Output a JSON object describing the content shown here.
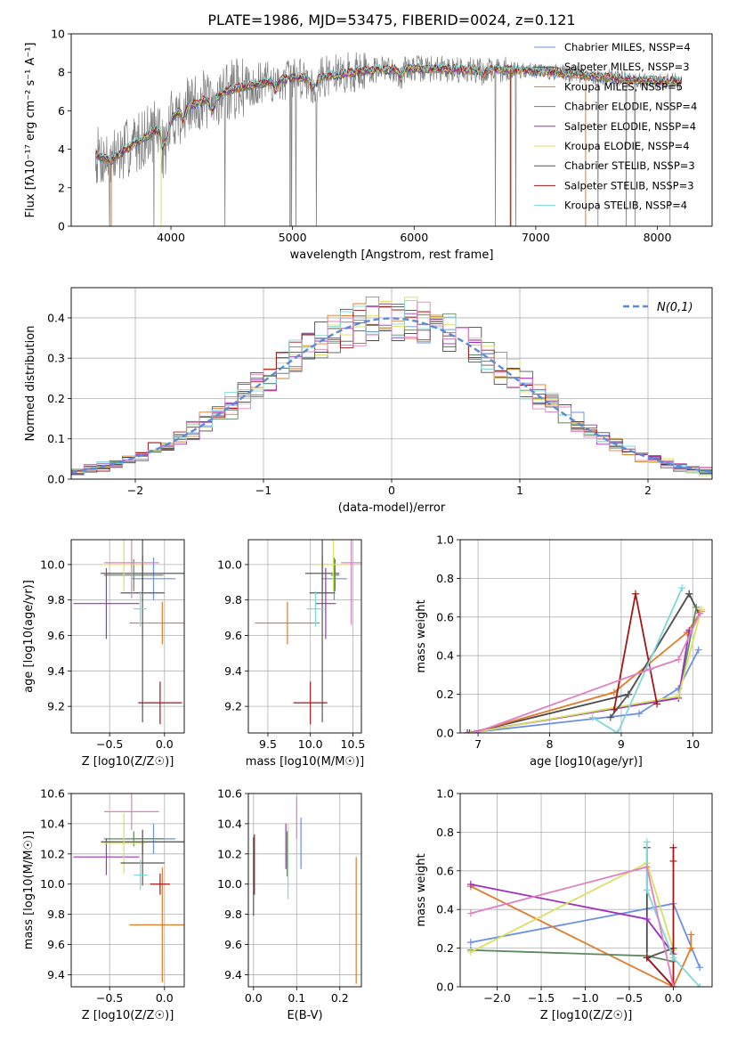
{
  "title": "PLATE=1986, MJD=53475, FIBERID=0024, z=0.121",
  "colors": {
    "Chabrier MILES": "#6b8fe3",
    "Salpeter MILES": "#4a4a4a",
    "Kroupa MILES": "#e07b2a",
    "Chabrier ELODIE": "#5f8a5f",
    "Salpeter ELODIE": "#9b30c0",
    "Kroupa ELODIE": "#d8e060",
    "Chabrier STELIB": "#555555",
    "Salpeter STELIB": "#a01818",
    "Kroupa STELIB": "#7fd8d8",
    "pink": "#e080c0",
    "data": "#7f7f7f"
  },
  "chart_data": [
    {
      "id": "spectrum",
      "type": "line",
      "xlabel": "wavelength [Angstrom, rest frame]",
      "ylabel": "Flux [fλ10⁻¹⁷ erg cm⁻² s⁻¹ A⁻¹]",
      "xlim": [
        3180,
        8450
      ],
      "ylim": [
        0,
        10
      ],
      "xticks": [
        4000,
        5000,
        6000,
        7000,
        8000
      ],
      "yticks": [
        0,
        2,
        4,
        6,
        8,
        10
      ],
      "legend_position": "top-right",
      "legend": [
        "Chabrier MILES, NSSP=4",
        "Salpeter MILES, NSSP=3",
        "Kroupa MILES, NSSP=5",
        "Chabrier ELODIE, NSSP=4",
        "Salpeter ELODIE, NSSP=4",
        "Kroupa ELODIE, NSSP=4",
        "Chabrier STELIB, NSSP=3",
        "Salpeter STELIB, NSSP=3",
        "Kroupa STELIB, NSSP=4"
      ],
      "legend_keys": [
        "Chabrier MILES",
        "Salpeter MILES",
        "Kroupa MILES",
        "Chabrier ELODIE",
        "Salpeter ELODIE",
        "Kroupa ELODIE",
        "Chabrier STELIB",
        "Salpeter STELIB",
        "Kroupa STELIB"
      ],
      "continuum": [
        [
          3380,
          3.7
        ],
        [
          3500,
          3.4
        ],
        [
          3700,
          4.3
        ],
        [
          3900,
          5.1
        ],
        [
          4100,
          6.1
        ],
        [
          4300,
          6.6
        ],
        [
          4500,
          7.1
        ],
        [
          4800,
          7.5
        ],
        [
          5000,
          7.7
        ],
        [
          5300,
          7.8
        ],
        [
          5600,
          8.1
        ],
        [
          6000,
          8.2
        ],
        [
          6400,
          8.15
        ],
        [
          7000,
          8.1
        ],
        [
          7400,
          7.85
        ],
        [
          7800,
          7.6
        ],
        [
          8200,
          7.5
        ]
      ]
    },
    {
      "id": "residuals",
      "type": "histogram",
      "xlabel": "(data-model)/error",
      "ylabel": "Normed distribution",
      "xlim": [
        -2.5,
        2.5
      ],
      "ylim": [
        0,
        0.475
      ],
      "xticks": [
        -2,
        -1,
        0,
        1,
        2
      ],
      "yticks": [
        0.0,
        0.1,
        0.2,
        0.3,
        0.4
      ],
      "legend_position": "top-right",
      "legend": [
        "N(0,1)"
      ],
      "bin_width": 0.1
    },
    {
      "id": "age-vs-Z",
      "type": "errorbar",
      "xlabel": "Z [log10(Z/Z☉)]",
      "ylabel": "age  [log10(age/yr)]",
      "xlim": [
        -0.85,
        0.18
      ],
      "ylim": [
        9.05,
        10.14
      ],
      "xticks": [
        -0.5,
        0.0
      ],
      "yticks": [
        9.2,
        9.4,
        9.6,
        9.8,
        10.0
      ],
      "points": [
        {
          "key": "Chabrier MILES",
          "x": -0.1,
          "xerr": 0.2,
          "y": 9.92,
          "yerr": 0.12
        },
        {
          "key": "Salpeter MILES",
          "x": -0.2,
          "xerr": 0.38,
          "y": 9.95,
          "yerr": 0.1
        },
        {
          "key": "Kroupa MILES",
          "x": -0.02,
          "xerr": 0.3,
          "y": 9.67,
          "yerr": 0.12
        },
        {
          "key": "Chabrier ELODIE",
          "x": -0.28,
          "xerr": 0.27,
          "y": 9.94,
          "yerr": 0.09
        },
        {
          "key": "Salpeter ELODIE",
          "x": -0.53,
          "xerr": 0.3,
          "y": 9.78,
          "yerr": 0.2
        },
        {
          "key": "Kroupa ELODIE",
          "x": -0.37,
          "xerr": 0.2,
          "y": 10.0,
          "yerr": 0.15
        },
        {
          "key": "Chabrier STELIB",
          "x": -0.2,
          "xerr": 0.2,
          "y": 9.84,
          "yerr": 0.73
        },
        {
          "key": "Salpeter STELIB",
          "x": -0.04,
          "xerr": 0.2,
          "y": 9.22,
          "yerr": 0.12
        },
        {
          "key": "Kroupa STELIB",
          "x": -0.22,
          "xerr": 0.06,
          "y": 9.75,
          "yerr": 0.1
        },
        {
          "key": "pink",
          "x": -0.3,
          "xerr": 0.25,
          "y": 10.01,
          "yerr": 0.2
        }
      ]
    },
    {
      "id": "age-vs-mass",
      "type": "errorbar",
      "xlabel": "mass [log10(M/M☉)]",
      "ylabel": "",
      "xlim": [
        9.27,
        10.6
      ],
      "ylim": [
        9.05,
        10.14
      ],
      "xticks": [
        9.5,
        10.0,
        10.5
      ],
      "yticks": [
        9.2,
        9.4,
        9.6,
        9.8,
        10.0
      ],
      "points": [
        {
          "key": "Chabrier MILES",
          "x": 10.28,
          "xerr": 0.15,
          "y": 9.92,
          "yerr": 0.12
        },
        {
          "key": "Salpeter MILES",
          "x": 10.14,
          "xerr": 0.2,
          "y": 9.95,
          "yerr": 0.1
        },
        {
          "key": "Kroupa MILES",
          "x": 9.73,
          "xerr": 0.38,
          "y": 9.67,
          "yerr": 0.12
        },
        {
          "key": "Chabrier ELODIE",
          "x": 10.29,
          "xerr": 0.05,
          "y": 9.94,
          "yerr": 0.09
        },
        {
          "key": "Salpeter ELODIE",
          "x": 10.18,
          "xerr": 0.12,
          "y": 9.78,
          "yerr": 0.2
        },
        {
          "key": "Kroupa ELODIE",
          "x": 10.27,
          "xerr": 0.2,
          "y": 10.0,
          "yerr": 0.15
        },
        {
          "key": "Chabrier STELIB",
          "x": 10.14,
          "xerr": 0.15,
          "y": 9.84,
          "yerr": 0.73
        },
        {
          "key": "Salpeter STELIB",
          "x": 10.0,
          "xerr": 0.2,
          "y": 9.22,
          "yerr": 0.12
        },
        {
          "key": "Kroupa STELIB",
          "x": 10.06,
          "xerr": 0.1,
          "y": 9.75,
          "yerr": 0.1
        },
        {
          "key": "pink",
          "x": 10.48,
          "xerr": 0.12,
          "y": 10.01,
          "yerr": 0.35
        }
      ]
    },
    {
      "id": "weight-vs-age",
      "type": "line",
      "xlabel": "age  [log10(age/yr)]",
      "ylabel": "mass weight",
      "xlim": [
        6.75,
        10.27
      ],
      "ylim": [
        0,
        1
      ],
      "xticks": [
        7,
        8,
        9,
        10
      ],
      "yticks": [
        0.0,
        0.2,
        0.4,
        0.6,
        0.8,
        1.0
      ],
      "series": [
        {
          "key": "Chabrier MILES",
          "points": [
            [
              6.85,
              0.0
            ],
            [
              9.25,
              0.1
            ],
            [
              9.8,
              0.23
            ],
            [
              10.08,
              0.43
            ]
          ]
        },
        {
          "key": "Salpeter MILES",
          "points": [
            [
              6.88,
              0.0
            ],
            [
              9.1,
              0.2
            ],
            [
              9.95,
              0.72
            ],
            [
              10.08,
              0.62
            ]
          ]
        },
        {
          "key": "Kroupa MILES",
          "points": [
            [
              6.9,
              0.0
            ],
            [
              8.9,
              0.21
            ],
            [
              9.92,
              0.52
            ],
            [
              10.12,
              0.63
            ]
          ]
        },
        {
          "key": "Chabrier ELODIE",
          "points": [
            [
              6.85,
              0.0
            ],
            [
              9.8,
              0.18
            ],
            [
              10.05,
              0.65
            ]
          ]
        },
        {
          "key": "Salpeter ELODIE",
          "points": [
            [
              6.85,
              0.0
            ],
            [
              9.8,
              0.18
            ],
            [
              9.95,
              0.53
            ]
          ]
        },
        {
          "key": "Kroupa ELODIE",
          "points": [
            [
              6.9,
              0.0
            ],
            [
              9.8,
              0.19
            ],
            [
              10.12,
              0.64
            ]
          ]
        },
        {
          "key": "Chabrier STELIB",
          "points": [
            [
              8.85,
              0.08
            ],
            [
              9.1,
              0.2
            ],
            [
              9.95,
              0.72
            ]
          ]
        },
        {
          "key": "Salpeter STELIB",
          "points": [
            [
              8.9,
              0.12
            ],
            [
              9.2,
              0.72
            ],
            [
              9.5,
              0.15
            ]
          ]
        },
        {
          "key": "Kroupa STELIB",
          "points": [
            [
              8.6,
              0.08
            ],
            [
              8.95,
              0.0
            ],
            [
              9.85,
              0.75
            ]
          ]
        },
        {
          "key": "pink",
          "points": [
            [
              6.95,
              0.0
            ],
            [
              9.4,
              0.33
            ],
            [
              9.8,
              0.38
            ],
            [
              10.1,
              0.62
            ]
          ]
        }
      ]
    },
    {
      "id": "mass-vs-Z",
      "type": "errorbar",
      "xlabel": "Z [log10(Z/Z☉)]",
      "ylabel": "mass [log10(M/M☉)]",
      "xlim": [
        -0.85,
        0.18
      ],
      "ylim": [
        9.32,
        10.6
      ],
      "xticks": [
        -0.5,
        0.0
      ],
      "yticks": [
        9.4,
        9.6,
        9.8,
        10.0,
        10.2,
        10.4,
        10.6
      ],
      "points": [
        {
          "key": "Chabrier MILES",
          "x": -0.1,
          "xerr": 0.2,
          "y": 10.3,
          "yerr": 0.1
        },
        {
          "key": "Salpeter MILES",
          "x": -0.2,
          "xerr": 0.38,
          "y": 10.28,
          "yerr": 0.08
        },
        {
          "key": "Kroupa MILES",
          "x": -0.02,
          "xerr": 0.3,
          "y": 9.73,
          "yerr": 0.38
        },
        {
          "key": "Chabrier ELODIE",
          "x": -0.28,
          "xerr": 0.27,
          "y": 10.3,
          "yerr": 0.05
        },
        {
          "key": "Salpeter ELODIE",
          "x": -0.53,
          "xerr": 0.3,
          "y": 10.18,
          "yerr": 0.12
        },
        {
          "key": "Kroupa ELODIE",
          "x": -0.37,
          "xerr": 0.2,
          "y": 10.27,
          "yerr": 0.2
        },
        {
          "key": "Chabrier STELIB",
          "x": -0.2,
          "xerr": 0.2,
          "y": 10.14,
          "yerr": 0.15
        },
        {
          "key": "Salpeter STELIB",
          "x": -0.04,
          "xerr": 0.09,
          "y": 10.0,
          "yerr": 0.07
        },
        {
          "key": "Kroupa STELIB",
          "x": -0.22,
          "xerr": 0.06,
          "y": 10.06,
          "yerr": 0.1
        },
        {
          "key": "pink",
          "x": -0.3,
          "xerr": 0.25,
          "y": 10.48,
          "yerr": 0.12
        }
      ]
    },
    {
      "id": "mass-vs-ebv",
      "type": "errorbar",
      "xlabel": "E(B-V)",
      "ylabel": "",
      "xlim": [
        -0.012,
        0.25
      ],
      "ylim": [
        9.32,
        10.6
      ],
      "xticks": [
        0.0,
        0.1,
        0.2
      ],
      "yticks": [
        9.4,
        9.6,
        9.8,
        10.0,
        10.2,
        10.4,
        10.6
      ],
      "points": [
        {
          "key": "Chabrier MILES",
          "x": 0.11,
          "y": 10.27,
          "yerr": 0.17
        },
        {
          "key": "Salpeter ELODIE",
          "x": 0.075,
          "y": 10.25,
          "yerr": 0.15
        },
        {
          "key": "Kroupa ELODIE",
          "x": 0.08,
          "y": 10.25,
          "yerr": 0.15
        },
        {
          "key": "Chabrier ELODIE",
          "x": 0.078,
          "y": 10.2,
          "yerr": 0.15
        },
        {
          "key": "Kroupa STELIB",
          "x": 0.08,
          "y": 10.06,
          "yerr": 0.16
        },
        {
          "key": "Chabrier STELIB",
          "x": 0.0,
          "y": 10.05,
          "yerr": 0.26
        },
        {
          "key": "Salpeter STELIB",
          "x": 0.002,
          "y": 10.13,
          "yerr": 0.2
        },
        {
          "key": "pink",
          "x": 0.1,
          "y": 10.44,
          "yerr": 0.14
        },
        {
          "key": "Kroupa MILES",
          "x": 0.238,
          "y": 9.76,
          "yerr": 0.42
        }
      ]
    },
    {
      "id": "weight-vs-Z",
      "type": "line",
      "xlabel": "Z [log10(Z/Z☉)]",
      "ylabel": "mass weight",
      "xlim": [
        -2.42,
        0.44
      ],
      "ylim": [
        0,
        1
      ],
      "xticks": [
        -2.0,
        -1.5,
        -1.0,
        -0.5,
        0.0
      ],
      "yticks": [
        0.0,
        0.2,
        0.4,
        0.6,
        0.8,
        1.0
      ],
      "series": [
        {
          "key": "Chabrier MILES",
          "points": [
            [
              -2.3,
              0.23
            ],
            [
              0.0,
              0.43
            ],
            [
              0.3,
              0.1
            ]
          ]
        },
        {
          "key": "Salpeter MILES",
          "points": [
            [
              -0.3,
              0.72
            ],
            [
              -0.3,
              0.15
            ],
            [
              0.0,
              0.0
            ]
          ]
        },
        {
          "key": "Kroupa MILES",
          "points": [
            [
              -2.3,
              0.52
            ],
            [
              0.0,
              0.0
            ],
            [
              0.2,
              0.2
            ],
            [
              0.2,
              0.27
            ]
          ]
        },
        {
          "key": "Chabrier ELODIE",
          "points": [
            [
              -2.3,
              0.19
            ],
            [
              -0.3,
              0.16
            ],
            [
              0.0,
              0.13
            ]
          ]
        },
        {
          "key": "Salpeter ELODIE",
          "points": [
            [
              -2.3,
              0.53
            ],
            [
              -0.3,
              0.35
            ],
            [
              0.0,
              0.17
            ]
          ]
        },
        {
          "key": "Kroupa ELODIE",
          "points": [
            [
              -2.3,
              0.18
            ],
            [
              -0.3,
              0.64
            ],
            [
              0.0,
              0.19
            ]
          ]
        },
        {
          "key": "Chabrier STELIB",
          "points": [
            [
              -0.3,
              0.15
            ],
            [
              0.0,
              0.2
            ]
          ]
        },
        {
          "key": "Salpeter STELIB",
          "points": [
            [
              -0.3,
              0.15
            ],
            [
              0.0,
              0.0
            ],
            [
              0.0,
              0.72
            ],
            [
              0.0,
              0.65
            ]
          ]
        },
        {
          "key": "Kroupa STELIB",
          "points": [
            [
              -0.3,
              0.75
            ],
            [
              -0.3,
              0.5
            ],
            [
              0.0,
              0.15
            ],
            [
              0.3,
              0.0
            ]
          ]
        },
        {
          "key": "pink",
          "points": [
            [
              -2.3,
              0.38
            ],
            [
              -0.3,
              0.62
            ],
            [
              0.0,
              0.0
            ]
          ]
        }
      ]
    }
  ]
}
